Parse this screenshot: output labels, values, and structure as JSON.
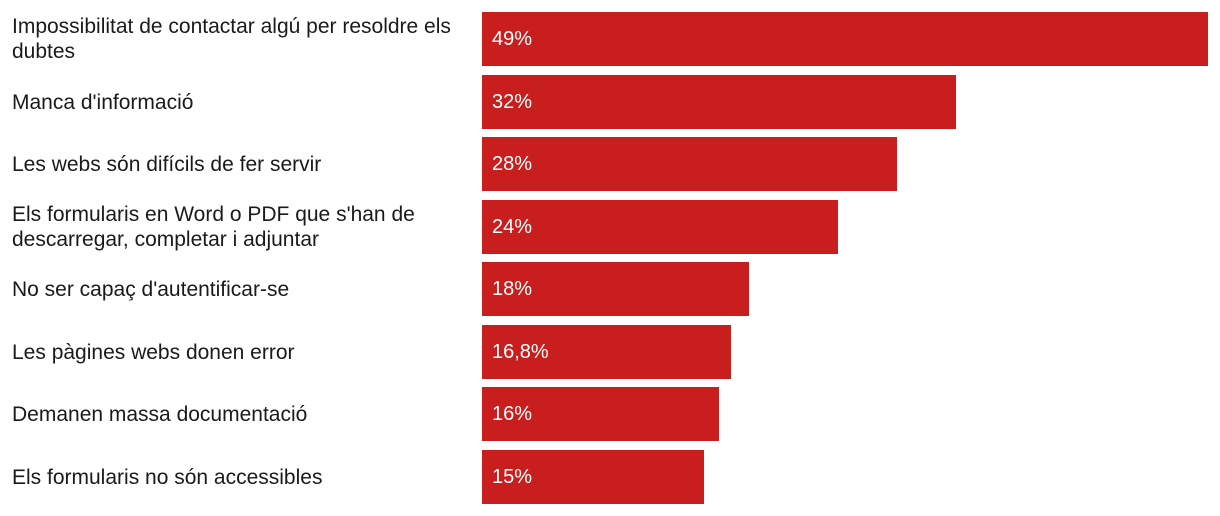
{
  "chart_data": {
    "type": "bar",
    "orientation": "horizontal",
    "categories": [
      "Impossibilitat de contactar algú per resoldre els dubtes",
      "Manca d'informació",
      "Les webs són difícils de fer servir",
      "Els formularis en Word o PDF que s'han de descarregar, completar i adjuntar",
      "No ser capaç d'autentificar-se",
      "Les pàgines webs donen error",
      "Demanen massa documentació",
      "Els formularis no són accessibles"
    ],
    "values": [
      49,
      32,
      28,
      24,
      18,
      16.8,
      16,
      15
    ],
    "data_labels": [
      "49%",
      "32%",
      "28%",
      "24%",
      "18%",
      "16,8%",
      "16%",
      "15%"
    ],
    "xlim": [
      0,
      49
    ],
    "bar_color": "#c81e1e",
    "grid": false,
    "legend": "none"
  }
}
